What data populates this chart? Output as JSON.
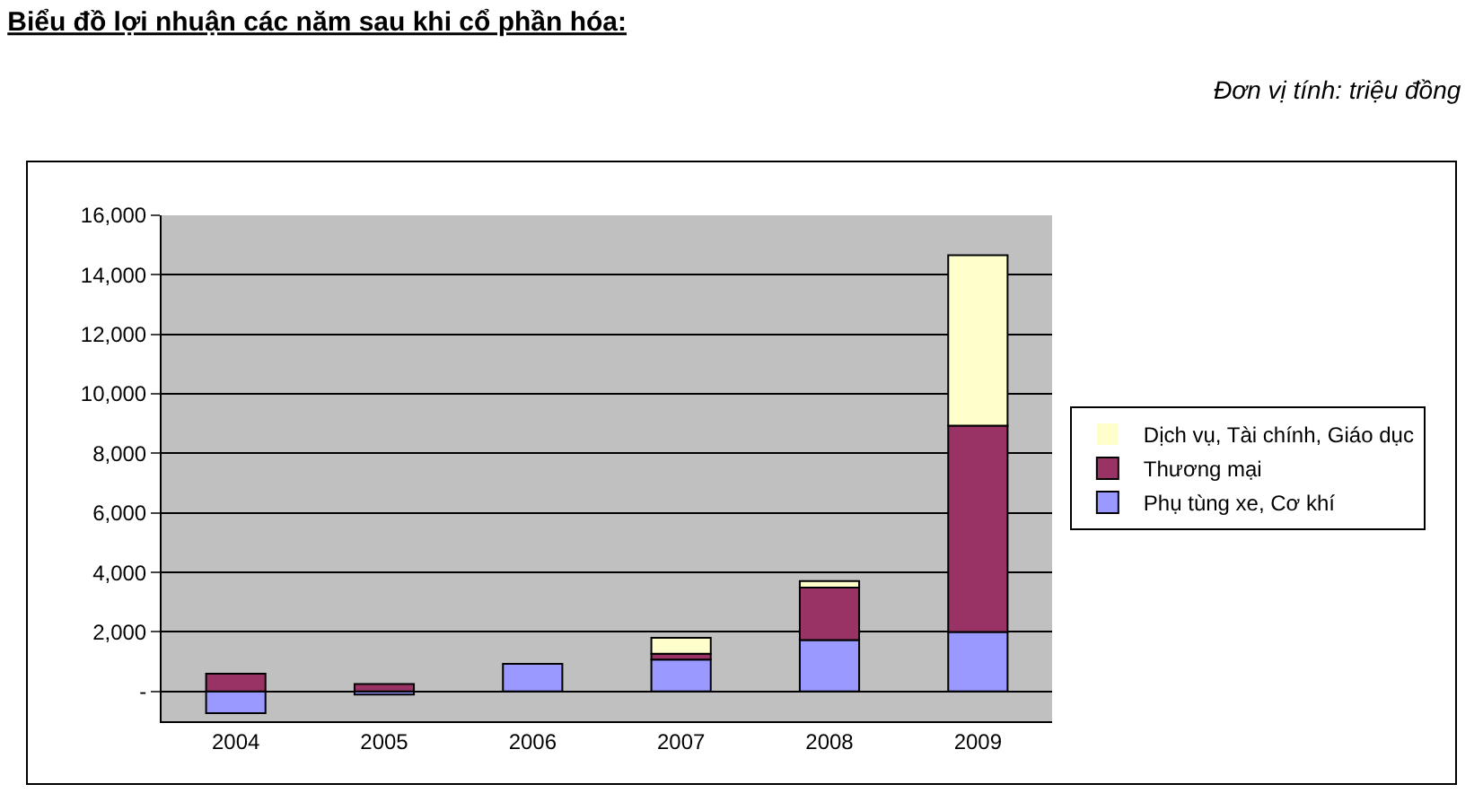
{
  "chart_data": {
    "type": "bar",
    "title": "Biểu đồ lợi nhuận các năm sau khi cổ phần hóa:",
    "annotations": [
      "Đơn vị tính: triệu đồng"
    ],
    "categories": [
      "2004",
      "2005",
      "2006",
      "2007",
      "2008",
      "2009"
    ],
    "series": [
      {
        "name": "Phụ tùng xe, Cơ khí",
        "color": "#9999ff",
        "values": [
          -730,
          -100,
          930,
          1070,
          1730,
          2000
        ]
      },
      {
        "name": "Thương mại",
        "color": "#993366",
        "values": [
          600,
          250,
          0,
          200,
          1760,
          6930
        ]
      },
      {
        "name": "Dịch vụ, Tài chính, Giáo dục",
        "color": "#ffffcc",
        "values": [
          0,
          0,
          0,
          530,
          220,
          5730
        ]
      }
    ],
    "stacked": true,
    "ylim": [
      -1000,
      16000
    ],
    "yticks": [
      {
        "value": 0,
        "label": "-"
      },
      {
        "value": 2000,
        "label": "2,000"
      },
      {
        "value": 4000,
        "label": "4,000"
      },
      {
        "value": 6000,
        "label": "6,000"
      },
      {
        "value": 8000,
        "label": "8,000"
      },
      {
        "value": 10000,
        "label": "10,000"
      },
      {
        "value": 12000,
        "label": "12,000"
      },
      {
        "value": 14000,
        "label": "14,000"
      },
      {
        "value": 16000,
        "label": "16,000"
      }
    ],
    "grid": "y",
    "legend": "right"
  }
}
